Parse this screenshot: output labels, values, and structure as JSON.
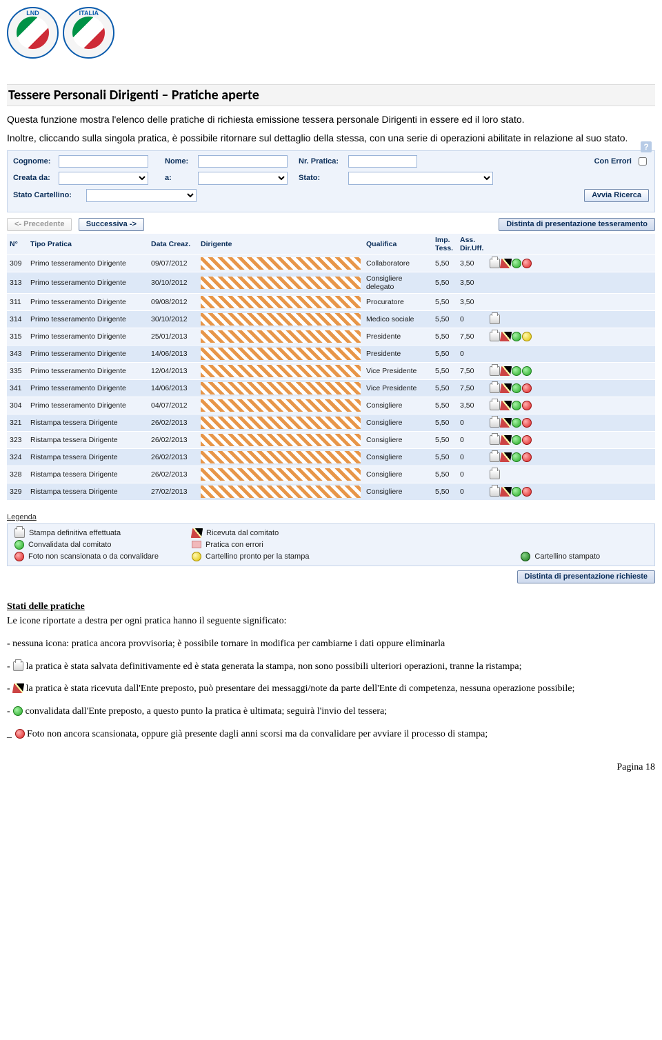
{
  "heading": "Tessere Personali Dirigenti – Pratiche aperte",
  "intro1": "Questa funzione mostra l'elenco delle pratiche di richiesta emissione tessera personale Dirigenti in essere ed il loro stato.",
  "intro2": "Inoltre, cliccando sulla singola pratica, è possibile ritornare sul dettaglio della stessa, con una serie di operazioni abilitate in relazione al suo stato.",
  "filter": {
    "labels": {
      "cognome": "Cognome:",
      "nome": "Nome:",
      "nrpratica": "Nr. Pratica:",
      "conerrori": "Con Errori",
      "creatada": "Creata da:",
      "a": "a:",
      "stato": "Stato:",
      "statocart": "Stato Cartellino:"
    },
    "btn_search": "Avvia Ricerca"
  },
  "topbar": {
    "prev": "<- Precedente",
    "next": "Successiva ->",
    "distinta": "Distinta di presentazione tesseramento"
  },
  "columns": {
    "n": "N°",
    "tipo": "Tipo Pratica",
    "data": "Data Creaz.",
    "dirigente": "Dirigente",
    "qualifica": "Qualifica",
    "imp": "Imp. Tess.",
    "ass": "Ass. Dir.Uff."
  },
  "rows": [
    {
      "n": "309",
      "tipo": "Primo tesseramento Dirigente",
      "data": "09/07/2012",
      "qualifica": "Collaboratore",
      "imp": "5,50",
      "ass": "3,50",
      "icons": [
        "print",
        "pencil",
        "green",
        "red"
      ]
    },
    {
      "n": "313",
      "tipo": "Primo tesseramento Dirigente",
      "data": "30/10/2012",
      "qualifica": "Consigliere delegato",
      "imp": "5,50",
      "ass": "3,50",
      "icons": []
    },
    {
      "n": "311",
      "tipo": "Primo tesseramento Dirigente",
      "data": "09/08/2012",
      "qualifica": "Procuratore",
      "imp": "5,50",
      "ass": "3,50",
      "icons": []
    },
    {
      "n": "314",
      "tipo": "Primo tesseramento Dirigente",
      "data": "30/10/2012",
      "qualifica": "Medico sociale",
      "imp": "5,50",
      "ass": "0",
      "icons": [
        "print"
      ]
    },
    {
      "n": "315",
      "tipo": "Primo tesseramento Dirigente",
      "data": "25/01/2013",
      "qualifica": "Presidente",
      "imp": "5,50",
      "ass": "7,50",
      "icons": [
        "print",
        "pencil",
        "green",
        "yellow"
      ]
    },
    {
      "n": "343",
      "tipo": "Primo tesseramento Dirigente",
      "data": "14/06/2013",
      "qualifica": "Presidente",
      "imp": "5,50",
      "ass": "0",
      "icons": []
    },
    {
      "n": "335",
      "tipo": "Primo tesseramento Dirigente",
      "data": "12/04/2013",
      "qualifica": "Vice Presidente",
      "imp": "5,50",
      "ass": "7,50",
      "icons": [
        "print",
        "pencil",
        "green",
        "green"
      ]
    },
    {
      "n": "341",
      "tipo": "Primo tesseramento Dirigente",
      "data": "14/06/2013",
      "qualifica": "Vice Presidente",
      "imp": "5,50",
      "ass": "7,50",
      "icons": [
        "print",
        "pencil",
        "green",
        "red"
      ]
    },
    {
      "n": "304",
      "tipo": "Primo tesseramento Dirigente",
      "data": "04/07/2012",
      "qualifica": "Consigliere",
      "imp": "5,50",
      "ass": "3,50",
      "icons": [
        "print",
        "pencil",
        "green",
        "red"
      ]
    },
    {
      "n": "321",
      "tipo": "Ristampa tessera Dirigente",
      "data": "26/02/2013",
      "qualifica": "Consigliere",
      "imp": "5,50",
      "ass": "0",
      "icons": [
        "print",
        "pencil",
        "green",
        "red"
      ]
    },
    {
      "n": "323",
      "tipo": "Ristampa tessera Dirigente",
      "data": "26/02/2013",
      "qualifica": "Consigliere",
      "imp": "5,50",
      "ass": "0",
      "icons": [
        "print",
        "pencil",
        "green",
        "red"
      ]
    },
    {
      "n": "324",
      "tipo": "Ristampa tessera Dirigente",
      "data": "26/02/2013",
      "qualifica": "Consigliere",
      "imp": "5,50",
      "ass": "0",
      "icons": [
        "print",
        "pencil",
        "green",
        "red"
      ]
    },
    {
      "n": "328",
      "tipo": "Ristampa tessera Dirigente",
      "data": "26/02/2013",
      "qualifica": "Consigliere",
      "imp": "5,50",
      "ass": "0",
      "icons": [
        "print"
      ]
    },
    {
      "n": "329",
      "tipo": "Ristampa tessera Dirigente",
      "data": "27/02/2013",
      "qualifica": "Consigliere",
      "imp": "5,50",
      "ass": "0",
      "icons": [
        "print",
        "pencil",
        "green",
        "red"
      ]
    }
  ],
  "legend": {
    "title": "Legenda",
    "items": {
      "print": "Stampa definitiva effettuata",
      "pencil": "Ricevuta dal comitato",
      "green": "Convalidata dal comitato",
      "pink": "Pratica con errori",
      "red": "Foto non scansionata o da convalidare",
      "yellow": "Cartellino pronto per la stampa",
      "darkgreen": "Cartellino stampato"
    },
    "distinta_footer": "Distinta di presentazione richieste"
  },
  "stati": {
    "title": "Stati delle pratiche",
    "line1": "Le icone riportate a destra per ogni pratica hanno il seguente significato:",
    "b_none": "- nessuna icona: pratica ancora provvisoria; è possibile tornare in modifica per cambiarne i dati oppure eliminarla",
    "b_print": " la pratica è stata salvata definitivamente ed è stata generata la stampa, non sono possibili ulteriori operazioni, tranne la ristampa;",
    "b_pencil": " la pratica è stata ricevuta dall'Ente preposto, può presentare dei messaggi/note da parte dell'Ente di competenza, nessuna operazione possibile;",
    "b_green": " convalidata dall'Ente preposto, a questo punto la pratica è ultimata; seguirà l'invio del tessera;",
    "b_red": " Foto non ancora scansionata, oppure già presente dagli anni scorsi ma da convalidare per avviare il processo di stampa;"
  },
  "page": "Pagina 18"
}
